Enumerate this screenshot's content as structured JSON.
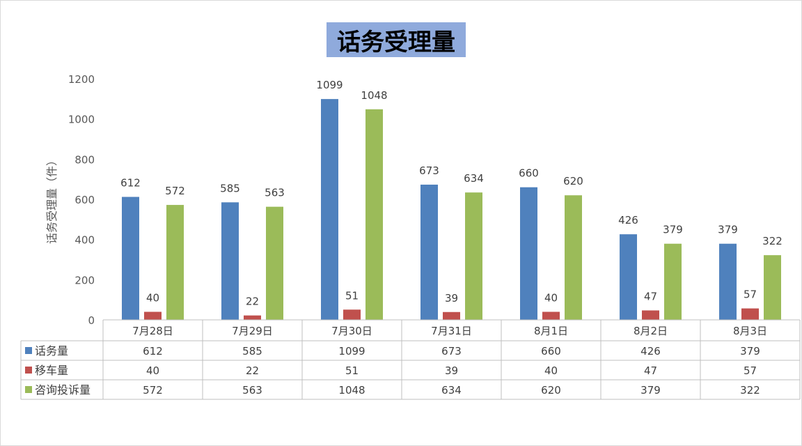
{
  "chart_data": {
    "type": "bar",
    "title": "话务受理量",
    "ylabel": "话务受理量（件）",
    "ylim": [
      0,
      1200
    ],
    "yticks": [
      0,
      200,
      400,
      600,
      800,
      1000,
      1200
    ],
    "grid": false,
    "legend": "data-table",
    "categories": [
      "7月28日",
      "7月29日",
      "7月30日",
      "7月31日",
      "8月1日",
      "8月2日",
      "8月3日"
    ],
    "series": [
      {
        "name": "话务量",
        "color": "#4f81bd",
        "values": [
          612,
          585,
          1099,
          673,
          660,
          426,
          379
        ]
      },
      {
        "name": "移车量",
        "color": "#c0504d",
        "values": [
          40,
          22,
          51,
          39,
          40,
          47,
          57
        ]
      },
      {
        "name": "咨询投诉量",
        "color": "#9bbb59",
        "values": [
          572,
          563,
          1048,
          634,
          620,
          379,
          322
        ]
      }
    ]
  }
}
